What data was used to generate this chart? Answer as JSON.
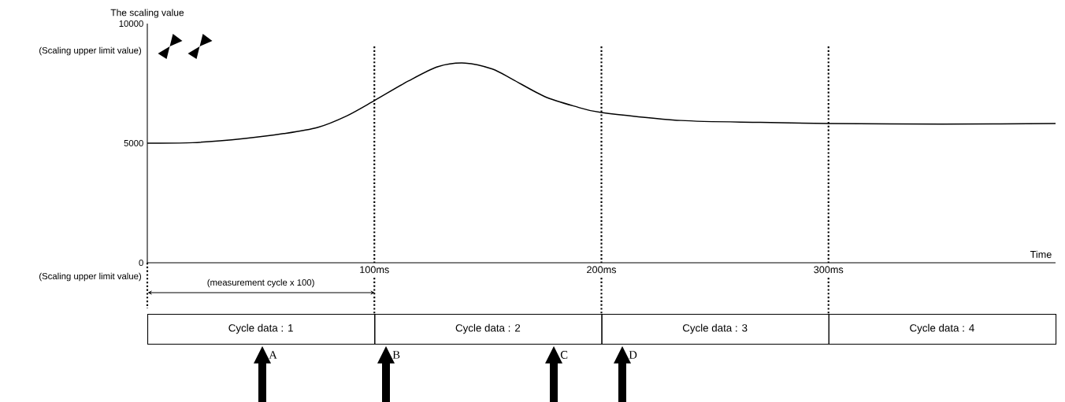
{
  "chart_data": {
    "type": "line",
    "ylabel": "The scaling value",
    "xlabel": "Time",
    "x": [
      0,
      20,
      43,
      60,
      75,
      88,
      100,
      115,
      128,
      140,
      152,
      161,
      175,
      188,
      200,
      235,
      270,
      300,
      350,
      400
    ],
    "series": [
      {
        "color": "#000000",
        "values": [
          5000,
          5020,
          5200,
          5400,
          5660,
          6150,
          6780,
          7600,
          8200,
          8350,
          8100,
          7660,
          6950,
          6550,
          6280,
          5950,
          5870,
          5820,
          5800,
          5820
        ]
      }
    ],
    "xlim": [
      0,
      400
    ],
    "ylim": [
      0,
      10000
    ],
    "xticks": [
      {
        "value": 100,
        "label": "100ms"
      },
      {
        "value": 200,
        "label": "200ms"
      },
      {
        "value": 300,
        "label": "300ms"
      }
    ],
    "yticks": [
      0,
      5000,
      10000
    ],
    "ref_lines": [
      {
        "axis": "x",
        "value": 100,
        "line_style": "dotted",
        "color": "#000000"
      },
      {
        "axis": "x",
        "value": 200,
        "line_style": "dotted",
        "color": "#000000"
      },
      {
        "axis": "x",
        "value": 300,
        "line_style": "dotted",
        "color": "#000000"
      }
    ],
    "annotations": [
      "(Scaling upper limit value)",
      "(Scaling upper limit value)",
      "(measurement cycle x 100)",
      "Cycle data : 1",
      "Cycle data : 2",
      "Cycle data : 3",
      "Cycle data : 4",
      "A",
      "B",
      "C",
      "D"
    ],
    "grid": false,
    "marker": "none",
    "line_style": "solid"
  }
}
